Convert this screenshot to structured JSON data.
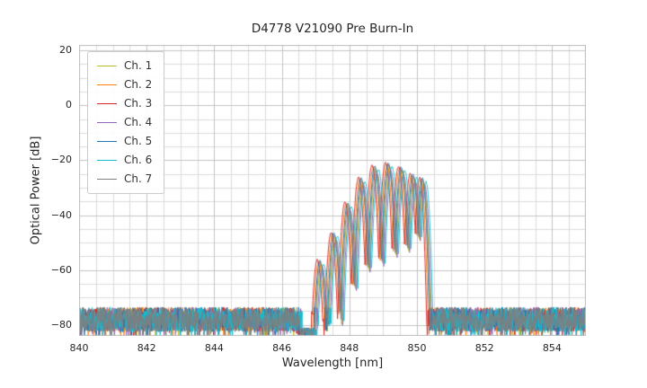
{
  "chart_data": {
    "type": "line",
    "title": "D4778 V21090 Pre Burn-In",
    "xlabel": "Wavelength [nm]",
    "ylabel": "Optical Power [dB]",
    "xlim": [
      840,
      855
    ],
    "ylim": [
      -84,
      22
    ],
    "x_ticks": [
      840,
      842,
      844,
      846,
      848,
      850,
      852,
      854
    ],
    "y_ticks": [
      -80,
      -60,
      -40,
      -20,
      0,
      20
    ],
    "x_minor_step": 0.5,
    "y_minor_step": 5,
    "grid": {
      "major_color": "#c4c4c4",
      "minor_color": "#dcdcdc",
      "border_color": "#bdbdbd"
    },
    "legend": {
      "location": "upper left"
    },
    "series": [
      {
        "name": "Ch. 1",
        "color": "#bcbd22",
        "x_offset": 0.02,
        "db_offset": -0.8
      },
      {
        "name": "Ch. 2",
        "color": "#ff7f0e",
        "x_offset": -0.06,
        "db_offset": 0.6
      },
      {
        "name": "Ch. 3",
        "color": "#d62728",
        "x_offset": -0.1,
        "db_offset": 1.2
      },
      {
        "name": "Ch. 4",
        "color": "#9467bd",
        "x_offset": 0.05,
        "db_offset": -1.6
      },
      {
        "name": "Ch. 5",
        "color": "#1f77b4",
        "x_offset": -0.02,
        "db_offset": 0.9
      },
      {
        "name": "Ch. 6",
        "color": "#17becf",
        "x_offset": 0.09,
        "db_offset": -0.4
      },
      {
        "name": "Ch. 7",
        "color": "#7f7f7f",
        "x_offset": 0.0,
        "db_offset": 0.0
      }
    ],
    "signal_envelope": {
      "description": "Multi-lobe optical spectrum between ~846.5 and ~850.5 nm rising out of a ~-78 dB noise floor to a ~-22 dB peak near 849.2 nm; deep notch near 846.7 nm",
      "lobe_rolloff_db": 35,
      "lobes": [
        {
          "center": 847.15,
          "peak": -57.5,
          "width": 0.2
        },
        {
          "center": 847.56,
          "peak": -47.5,
          "width": 0.2
        },
        {
          "center": 847.97,
          "peak": -36.5,
          "width": 0.2
        },
        {
          "center": 848.37,
          "peak": -27.5,
          "width": 0.2
        },
        {
          "center": 848.77,
          "peak": -23.0,
          "width": 0.2
        },
        {
          "center": 849.17,
          "peak": -22.0,
          "width": 0.2
        },
        {
          "center": 849.55,
          "peak": -23.5,
          "width": 0.2
        },
        {
          "center": 849.9,
          "peak": -26.0,
          "width": 0.19
        },
        {
          "center": 850.18,
          "peak": -27.5,
          "width": 0.17
        }
      ],
      "gap": {
        "start": 846.53,
        "end": 846.97,
        "level": -82.5,
        "spread": 3
      }
    },
    "noise_floor": {
      "mean": -78,
      "spread": 9,
      "dip_prob": 0.07,
      "dip_depth": 8
    }
  }
}
